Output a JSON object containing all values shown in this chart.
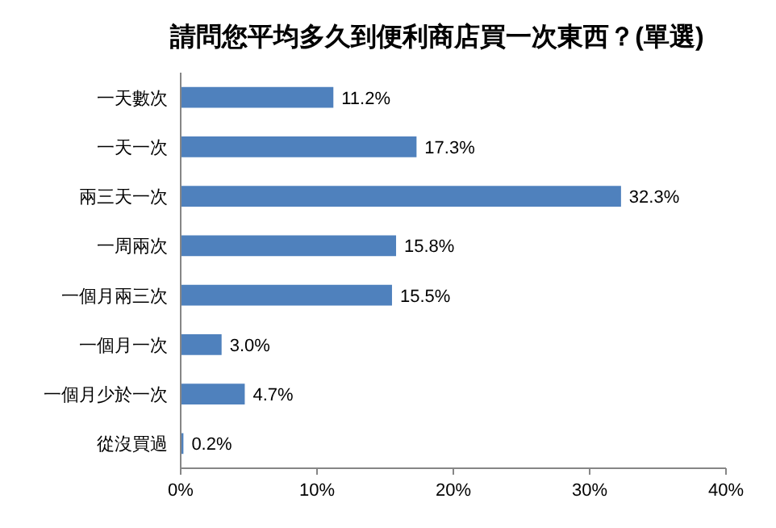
{
  "chart_data": {
    "type": "bar",
    "orientation": "horizontal",
    "title": "請問您平均多久到便利商店買一次東西？(單選)",
    "categories": [
      "一天數次",
      "一天一次",
      "兩三天一次",
      "一周兩次",
      "一個月兩三次",
      "一個月一次",
      "一個月少於一次",
      "從沒買過"
    ],
    "values": [
      11.2,
      17.3,
      32.3,
      15.8,
      15.5,
      3.0,
      4.7,
      0.2
    ],
    "value_labels": [
      "11.2%",
      "17.3%",
      "32.3%",
      "15.8%",
      "15.5%",
      "3.0%",
      "4.7%",
      "0.2%"
    ],
    "color": "#4f81bd",
    "xlim": [
      0,
      40
    ],
    "xticks": [
      {
        "value": 0,
        "label": "0%"
      },
      {
        "value": 10,
        "label": "10%"
      },
      {
        "value": 20,
        "label": "20%"
      },
      {
        "value": 30,
        "label": "30%"
      },
      {
        "value": 40,
        "label": "40%"
      }
    ],
    "grid": false
  }
}
